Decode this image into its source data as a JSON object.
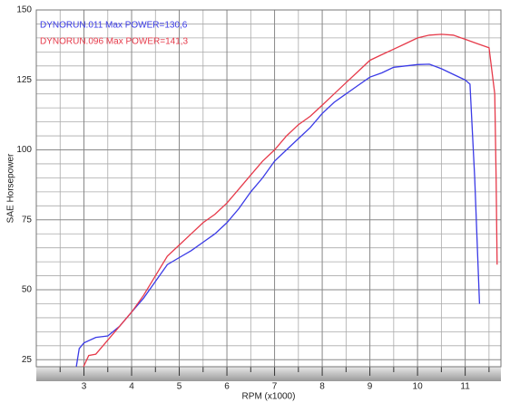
{
  "chart_data": {
    "type": "line",
    "x_label": "RPM (x1000)",
    "y_label": "SAE Horsepower",
    "xlim": [
      2,
      11.75
    ],
    "ylim": [
      22.5,
      150
    ],
    "xticks": [
      3,
      4,
      5,
      6,
      7,
      8,
      9,
      10,
      11
    ],
    "yticks": [
      25,
      50,
      75,
      100,
      125,
      150
    ],
    "xminor": [
      2.5,
      3.5,
      4.5,
      5.5,
      6.5,
      7.5,
      8.5,
      9.5,
      10.5,
      11.5
    ],
    "yminor": [
      30,
      35,
      40,
      45,
      55,
      60,
      65,
      70,
      80,
      85,
      90,
      95,
      105,
      110,
      115,
      120,
      130,
      135,
      140,
      145
    ],
    "grid": true,
    "series": [
      {
        "name": "DYNORUN.011  Max POWER=130,6",
        "color": "#3a3ae6",
        "x": [
          2.84,
          2.9,
          3.0,
          3.25,
          3.5,
          3.75,
          4.0,
          4.25,
          4.5,
          4.75,
          5.0,
          5.25,
          5.5,
          5.75,
          6.0,
          6.25,
          6.5,
          6.75,
          7.0,
          7.25,
          7.5,
          7.75,
          8.0,
          8.25,
          8.5,
          8.75,
          9.0,
          9.25,
          9.5,
          9.75,
          10.0,
          10.25,
          10.5,
          10.75,
          11.0,
          11.1,
          11.2,
          11.3
        ],
        "values": [
          22.5,
          29,
          31,
          33,
          33.5,
          37,
          42,
          47,
          53,
          59,
          61.5,
          64,
          67,
          70,
          74,
          79,
          85,
          90,
          96,
          100,
          104,
          108,
          113,
          117,
          120,
          123,
          126,
          127.5,
          129.5,
          130,
          130.5,
          130.6,
          129,
          127,
          125,
          123.5,
          90,
          45
        ]
      },
      {
        "name": "DYNORUN.096  Max POWER=141,3",
        "color": "#e63a4a",
        "x": [
          2.99,
          3.1,
          3.25,
          3.5,
          3.75,
          4.0,
          4.25,
          4.5,
          4.75,
          5.0,
          5.25,
          5.5,
          5.75,
          6.0,
          6.25,
          6.5,
          6.75,
          7.0,
          7.25,
          7.5,
          7.75,
          8.0,
          8.25,
          8.5,
          8.75,
          9.0,
          9.25,
          9.5,
          9.75,
          10.0,
          10.25,
          10.5,
          10.75,
          11.0,
          11.25,
          11.5,
          11.62,
          11.65,
          11.67
        ],
        "values": [
          22.5,
          26.5,
          27,
          32,
          37,
          42,
          48,
          55,
          62,
          66,
          70,
          74,
          77,
          81,
          86,
          91,
          96,
          100,
          105,
          109,
          112,
          116,
          120,
          124,
          128,
          132,
          134,
          136,
          138,
          140,
          141,
          141.3,
          141,
          139.5,
          138,
          136.5,
          120,
          90,
          59
        ]
      }
    ]
  }
}
